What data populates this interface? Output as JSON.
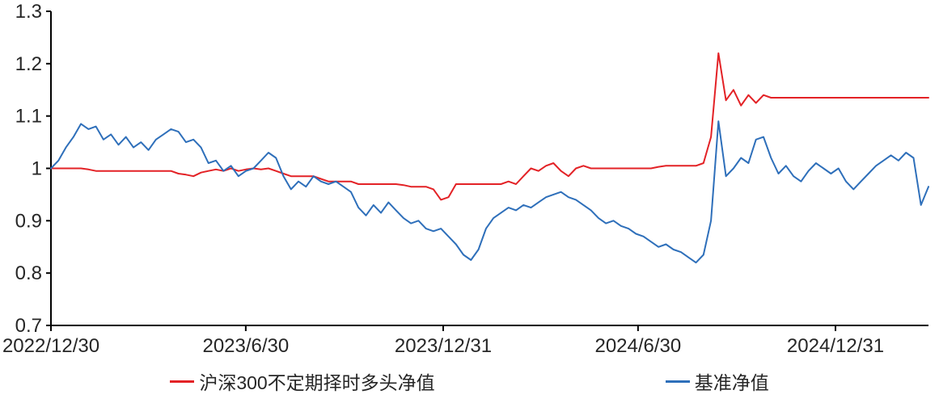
{
  "chart_data": {
    "type": "line",
    "title": "",
    "xlabel": "",
    "ylabel": "",
    "ylim": [
      0.7,
      1.3
    ],
    "grid": false,
    "legend_position": "bottom-center",
    "axis_color": "#000000",
    "text_color": "#262626",
    "y_ticks": [
      "0.7",
      "0.8",
      "0.9",
      "1",
      "1.1",
      "1.2",
      "1.3"
    ],
    "x_ticks": [
      {
        "label": "2022/12/30",
        "f": 0.0
      },
      {
        "label": "2023/6/30",
        "f": 0.222
      },
      {
        "label": "2023/12/31",
        "f": 0.447
      },
      {
        "label": "2024/6/30",
        "f": 0.669
      },
      {
        "label": "2024/12/31",
        "f": 0.894
      }
    ],
    "x_note": "values evenly spaced weekly from 2022/12/30 to approx 2025/3/28",
    "series": [
      {
        "name": "沪深300不定期择时多头净值",
        "color": "#e32226",
        "values": [
          1.0,
          1.0,
          1.0,
          1.0,
          1.0,
          0.998,
          0.995,
          0.995,
          0.995,
          0.995,
          0.995,
          0.995,
          0.995,
          0.995,
          0.995,
          0.995,
          0.995,
          0.99,
          0.988,
          0.985,
          0.992,
          0.995,
          0.998,
          0.995,
          1.0,
          0.995,
          0.998,
          1.0,
          0.998,
          1.0,
          0.995,
          0.99,
          0.985,
          0.985,
          0.985,
          0.985,
          0.98,
          0.975,
          0.975,
          0.975,
          0.975,
          0.97,
          0.97,
          0.97,
          0.97,
          0.97,
          0.97,
          0.968,
          0.965,
          0.965,
          0.965,
          0.96,
          0.94,
          0.945,
          0.97,
          0.97,
          0.97,
          0.97,
          0.97,
          0.97,
          0.97,
          0.975,
          0.97,
          0.985,
          1.0,
          0.995,
          1.005,
          1.01,
          0.995,
          0.985,
          1.0,
          1.005,
          1.0,
          1.0,
          1.0,
          1.0,
          1.0,
          1.0,
          1.0,
          1.0,
          1.0,
          1.003,
          1.005,
          1.005,
          1.005,
          1.005,
          1.005,
          1.01,
          1.06,
          1.22,
          1.13,
          1.15,
          1.12,
          1.14,
          1.125,
          1.14,
          1.135,
          1.135,
          1.135,
          1.135,
          1.135,
          1.135,
          1.135,
          1.135,
          1.135,
          1.135,
          1.135,
          1.135,
          1.135,
          1.135,
          1.135,
          1.135,
          1.135,
          1.135,
          1.135,
          1.135,
          1.135,
          1.135
        ]
      },
      {
        "name": "基准净值",
        "color": "#2e6fba",
        "values": [
          1.0,
          1.015,
          1.04,
          1.06,
          1.085,
          1.075,
          1.08,
          1.055,
          1.065,
          1.045,
          1.06,
          1.04,
          1.05,
          1.035,
          1.055,
          1.065,
          1.075,
          1.07,
          1.05,
          1.055,
          1.04,
          1.01,
          1.015,
          0.995,
          1.005,
          0.985,
          0.995,
          1.0,
          1.015,
          1.03,
          1.02,
          0.985,
          0.96,
          0.975,
          0.965,
          0.985,
          0.975,
          0.97,
          0.975,
          0.965,
          0.955,
          0.925,
          0.91,
          0.93,
          0.915,
          0.935,
          0.92,
          0.905,
          0.895,
          0.9,
          0.885,
          0.88,
          0.885,
          0.87,
          0.855,
          0.835,
          0.825,
          0.845,
          0.885,
          0.905,
          0.915,
          0.925,
          0.92,
          0.93,
          0.925,
          0.935,
          0.945,
          0.95,
          0.955,
          0.945,
          0.94,
          0.93,
          0.92,
          0.905,
          0.895,
          0.9,
          0.89,
          0.885,
          0.875,
          0.87,
          0.86,
          0.85,
          0.855,
          0.845,
          0.84,
          0.83,
          0.82,
          0.835,
          0.9,
          1.09,
          0.985,
          1.0,
          1.02,
          1.01,
          1.055,
          1.06,
          1.02,
          0.99,
          1.005,
          0.985,
          0.975,
          0.995,
          1.01,
          1.0,
          0.99,
          1.0,
          0.975,
          0.96,
          0.975,
          0.99,
          1.005,
          1.015,
          1.025,
          1.015,
          1.03,
          1.02,
          0.93,
          0.965
        ]
      }
    ]
  },
  "legend": {
    "items": [
      {
        "label": "沪深300不定期择时多头净值"
      },
      {
        "label": "基准净值"
      }
    ]
  }
}
